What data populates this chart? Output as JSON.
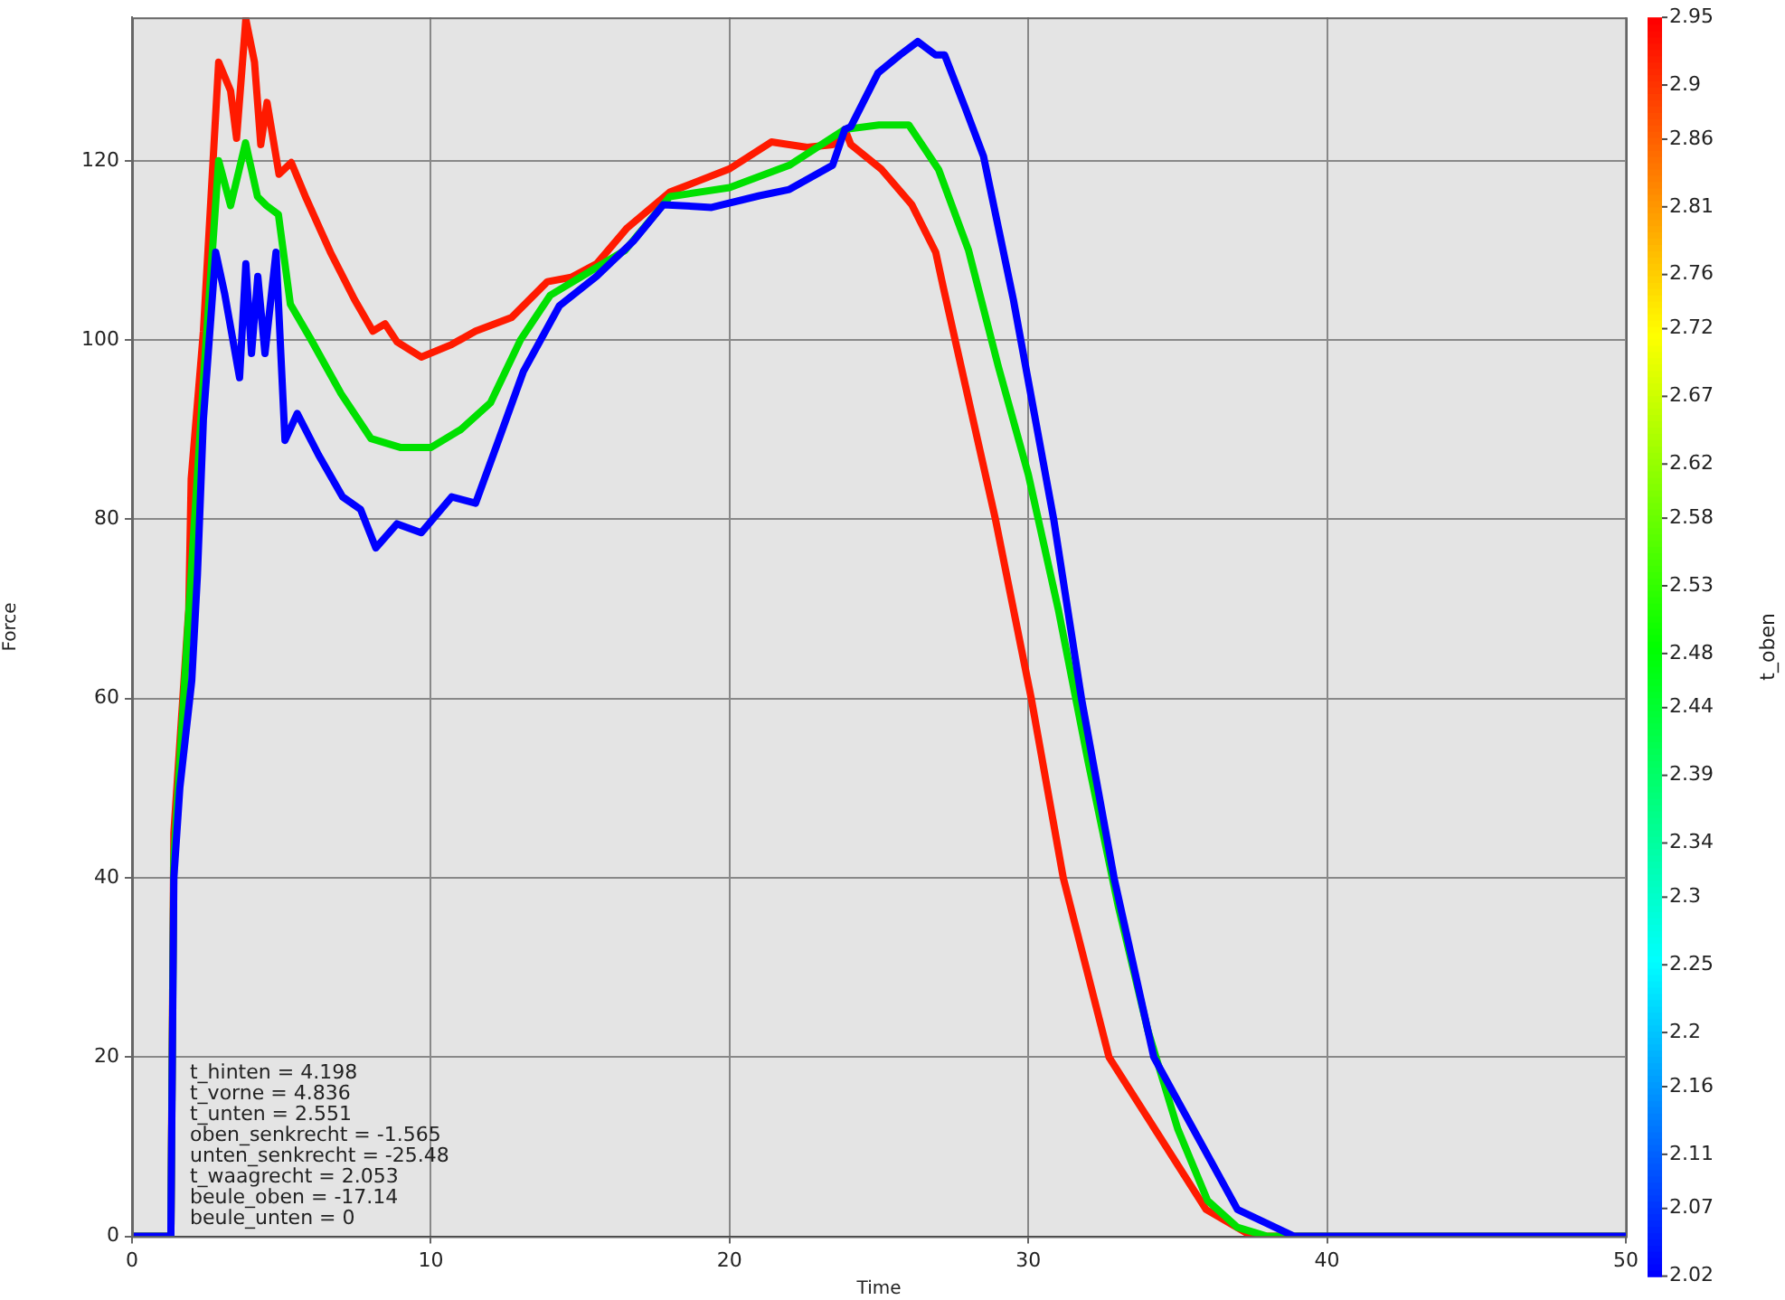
{
  "chart_data": {
    "type": "line",
    "xlabel": "Time",
    "ylabel": "Force",
    "clabel": "t_oben",
    "xlim": [
      0,
      50
    ],
    "xticks": [
      0,
      10,
      20,
      30,
      40,
      50
    ],
    "ylim": [
      0,
      136
    ],
    "yticks": [
      0,
      20,
      40,
      60,
      80,
      100,
      120
    ],
    "grid": true,
    "clim": [
      2.02,
      2.95
    ],
    "cticks": [
      2.02,
      2.07,
      2.11,
      2.16,
      2.2,
      2.25,
      2.3,
      2.34,
      2.39,
      2.44,
      2.48,
      2.53,
      2.58,
      2.62,
      2.67,
      2.72,
      2.76,
      2.81,
      2.86,
      2.9,
      2.95
    ],
    "annotations": [
      "t_hinten = 4.198",
      "t_vorne = 4.836",
      "t_unten = 2.551",
      "oben_senkrecht = -1.565",
      "unten_senkrecht = -25.48",
      "t_waagrecht = 2.053",
      "beule_oben = -17.14",
      "beule_unten = 0"
    ],
    "series": [
      {
        "color": "#0000ff",
        "x": [
          0,
          1.3,
          1.4,
          1.6,
          2.0,
          2.19,
          2.39,
          2.8,
          3.1,
          3.6,
          3.81,
          4.0,
          4.21,
          4.45,
          4.82,
          5.12,
          5.53,
          6.24,
          7.05,
          7.65,
          8.16,
          8.87,
          9.68,
          10.7,
          11.5,
          12.3,
          13.1,
          14.3,
          15.55,
          16.8,
          17.78,
          19.4,
          21.0,
          22.0,
          23.45,
          23.86,
          24.06,
          24.97,
          25.7,
          26.3,
          26.9,
          27.2,
          27.9,
          28.5,
          29.0,
          29.5,
          30.85,
          31.78,
          32.87,
          34.2,
          37.0,
          38.9,
          50
        ],
        "values": [
          0,
          0,
          40,
          50,
          62,
          73.8,
          91.2,
          109.8,
          105.2,
          95.8,
          108.5,
          98.5,
          107.1,
          98.5,
          109.8,
          88.8,
          91.8,
          87.2,
          82.5,
          81.1,
          76.8,
          79.5,
          78.5,
          82.5,
          81.8,
          89.1,
          96.5,
          103.8,
          107.1,
          111.1,
          115.1,
          114.8,
          116.1,
          116.8,
          119.5,
          123.5,
          123.8,
          129.8,
          131.8,
          133.3,
          131.8,
          131.8,
          125.8,
          120.5,
          112.5,
          104.5,
          80,
          60,
          40,
          20,
          3,
          0,
          0
        ]
      },
      {
        "color": "#00e000",
        "x": [
          0,
          1.3,
          1.4,
          2.0,
          2.4,
          2.9,
          3.3,
          3.8,
          4.2,
          4.5,
          4.9,
          5.3,
          6.0,
          7.0,
          8.0,
          9.0,
          10.0,
          11.0,
          12.0,
          13.0,
          14.0,
          15.0,
          16.5,
          18.0,
          20.0,
          22.0,
          23.86,
          25.0,
          26.0,
          27.0,
          28.0,
          29.0,
          30.0,
          31.0,
          32.0,
          33.0,
          34.0,
          35.0,
          36.0,
          37.0,
          38.0,
          50
        ],
        "values": [
          0,
          0,
          42,
          75,
          96,
          120,
          115,
          122,
          116,
          115,
          114,
          104,
          100,
          94,
          89,
          88,
          88,
          90,
          93,
          100,
          105,
          107,
          110,
          116,
          117,
          119.5,
          123.5,
          124,
          124,
          119,
          110,
          97,
          85,
          70,
          53,
          37,
          23,
          12,
          4,
          1,
          0,
          0
        ]
      },
      {
        "color": "#ff1a00",
        "x": [
          0,
          1.3,
          1.4,
          1.9,
          1.98,
          2.39,
          2.9,
          3.3,
          3.5,
          3.81,
          4.1,
          4.31,
          4.52,
          4.92,
          5.33,
          5.83,
          6.64,
          7.45,
          8.06,
          8.47,
          8.87,
          9.68,
          10.7,
          11.5,
          12.7,
          13.9,
          14.7,
          15.55,
          16.57,
          18.0,
          19.0,
          20.0,
          21.4,
          22.6,
          23.45,
          23.86,
          24.06,
          25.07,
          26.1,
          26.9,
          27.16,
          28.9,
          30.1,
          31.17,
          32.7,
          35.95,
          37.5,
          50
        ],
        "values": [
          0,
          0,
          45,
          70,
          84.5,
          101,
          131,
          127.8,
          122.5,
          135.8,
          131,
          121.8,
          126.5,
          118.5,
          119.8,
          115.8,
          109.8,
          104.5,
          101,
          101.8,
          99.8,
          98.1,
          99.5,
          101,
          102.5,
          106.5,
          107,
          108.5,
          112.5,
          116.5,
          117.8,
          119.1,
          122.1,
          121.5,
          121.8,
          123.5,
          121.8,
          119.1,
          115.1,
          109.8,
          105.8,
          80,
          60,
          40,
          20,
          3,
          0,
          0
        ]
      }
    ]
  }
}
